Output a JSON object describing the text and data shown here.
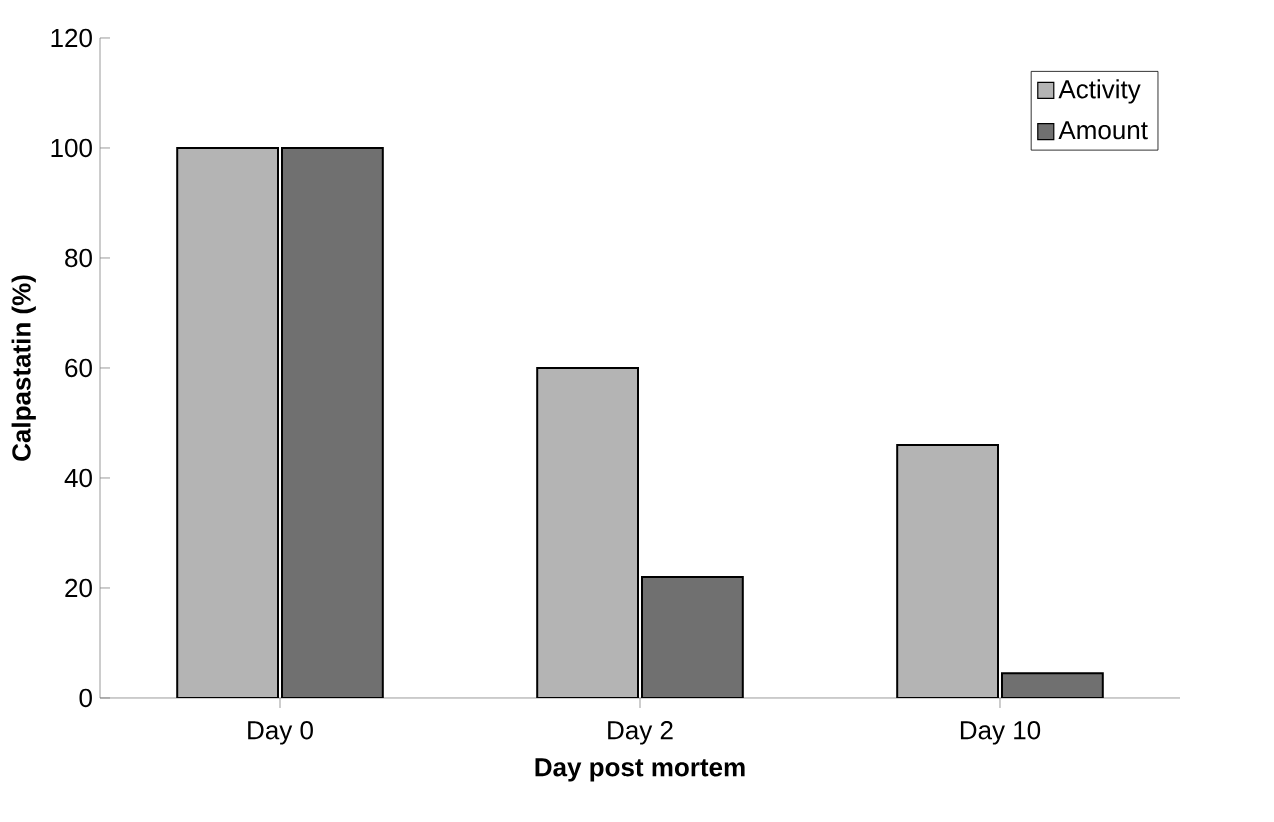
{
  "chart_data": {
    "type": "bar",
    "xlabel": "Day post mortem",
    "ylabel": "Calpastatin (%)",
    "categories": [
      "Day 0",
      "Day 2",
      "Day 10"
    ],
    "series": [
      {
        "name": "Activity",
        "color": "#b4b4b4",
        "values": [
          100,
          60,
          46
        ]
      },
      {
        "name": "Amount",
        "color": "#707070",
        "values": [
          100,
          22,
          4.5
        ]
      }
    ],
    "ylim": [
      0,
      120
    ],
    "yticks": [
      0,
      20,
      40,
      60,
      80,
      100,
      120
    ],
    "legend": "top right"
  }
}
